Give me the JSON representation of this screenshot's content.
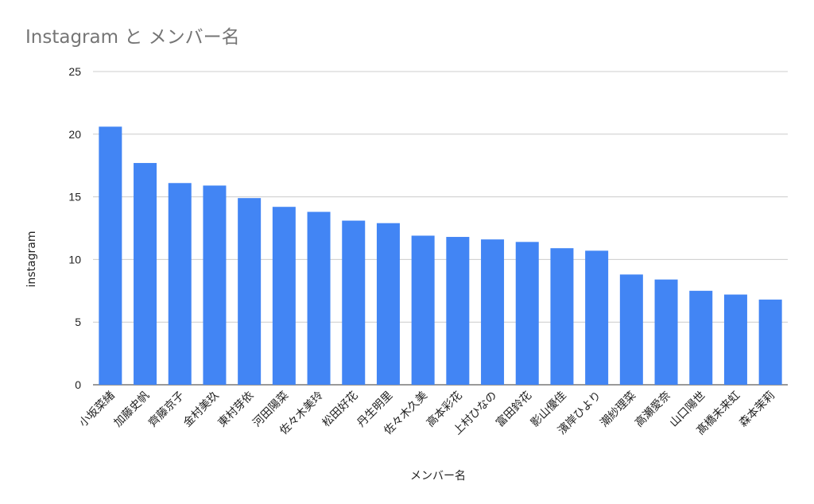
{
  "chart_data": {
    "type": "bar",
    "title": "Instagram と メンバー名",
    "xlabel": "メンバー名",
    "ylabel": "instagram",
    "ylim": [
      0,
      25
    ],
    "yticks": [
      "0",
      "5",
      "10",
      "15",
      "20",
      "25"
    ],
    "grid": true,
    "legend": "none",
    "categories": [
      "小坂菜緒",
      "加藤史帆",
      "齊藤京子",
      "金村美玖",
      "東村芽依",
      "河田陽菜",
      "佐々木美玲",
      "松田好花",
      "丹生明里",
      "佐々木久美",
      "高本彩花",
      "上村ひなの",
      "富田鈴花",
      "影山優佳",
      "濱岸ひより",
      "潮紗理菜",
      "高瀬愛奈",
      "山口陽世",
      "髙橋未来虹",
      "森本茉莉"
    ],
    "series": [
      {
        "values": [
          20.6,
          17.7,
          16.1,
          15.9,
          14.9,
          14.2,
          13.8,
          13.1,
          12.9,
          11.9,
          11.8,
          11.6,
          11.4,
          10.9,
          10.7,
          8.8,
          8.4,
          7.5,
          7.2,
          6.8
        ],
        "color": "#4285f4"
      }
    ]
  }
}
